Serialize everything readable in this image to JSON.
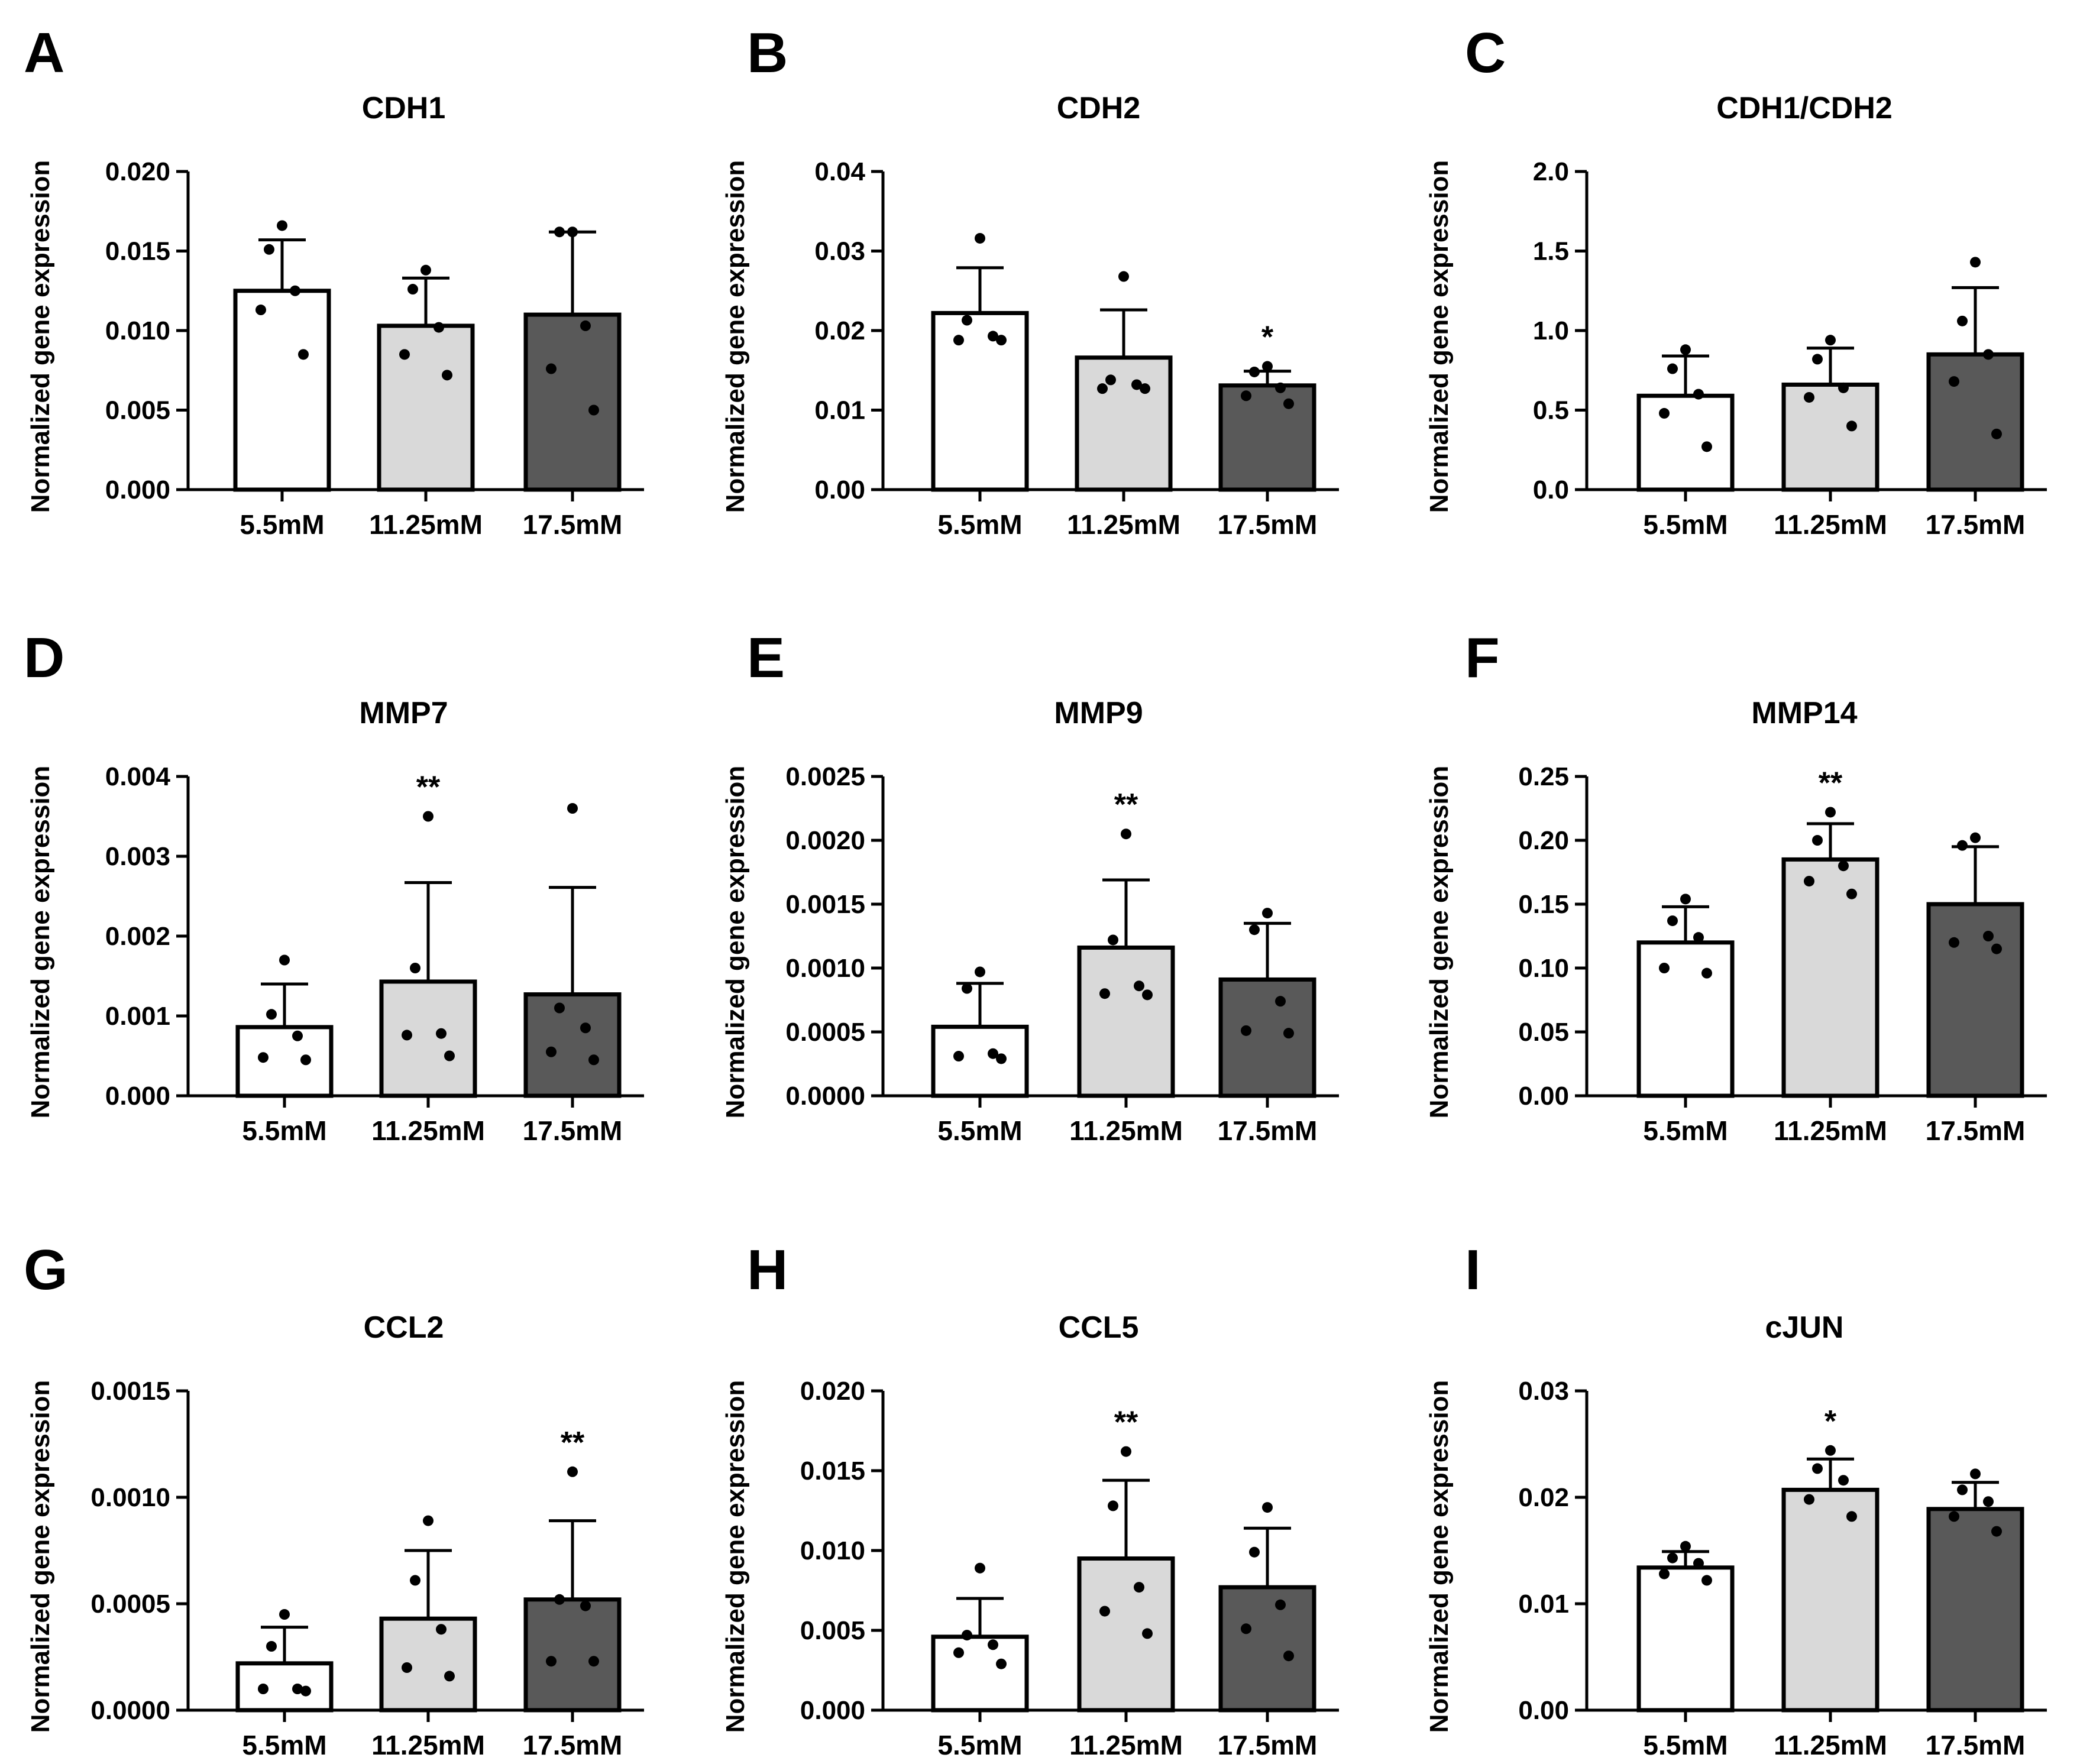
{
  "figure": {
    "categories": [
      "5.5mM",
      "11.25mM",
      "17.5mM"
    ],
    "bar_colors": [
      "#ffffff",
      "#d9d9d9",
      "#595959"
    ],
    "ylabel": "Normalized gene expression"
  },
  "chart_data": [
    {
      "panel": "A",
      "type": "bar",
      "title": "CDH1",
      "xlabel": "",
      "ylabel": "Normalized gene expression",
      "categories": [
        "5.5mM",
        "11.25mM",
        "17.5mM"
      ],
      "ylim": [
        0,
        0.02
      ],
      "yticks": [
        0,
        0.005,
        0.01,
        0.015,
        0.02
      ],
      "ytick_labels": [
        "0.000",
        "0.005",
        "0.010",
        "0.015",
        "0.020"
      ],
      "values": [
        0.0125,
        0.0103,
        0.011
      ],
      "errors": [
        0.0032,
        0.003,
        0.0052
      ],
      "points": [
        [
          0.0166,
          0.0151,
          0.0125,
          0.0113,
          0.0085
        ],
        [
          0.0138,
          0.0126,
          0.0102,
          0.0085,
          0.0072
        ],
        [
          0.0162,
          0.0162,
          0.0103,
          0.0076,
          0.005
        ]
      ],
      "significance": [
        "",
        "",
        ""
      ]
    },
    {
      "panel": "B",
      "type": "bar",
      "title": "CDH2",
      "xlabel": "",
      "ylabel": "Normalized gene expression",
      "categories": [
        "5.5mM",
        "11.25mM",
        "17.5mM"
      ],
      "ylim": [
        0,
        0.04
      ],
      "yticks": [
        0,
        0.01,
        0.02,
        0.03,
        0.04
      ],
      "ytick_labels": [
        "0.00",
        "0.01",
        "0.02",
        "0.03",
        "0.04"
      ],
      "values": [
        0.0222,
        0.0166,
        0.0131
      ],
      "errors": [
        0.0057,
        0.006,
        0.0018
      ],
      "points": [
        [
          0.0316,
          0.0213,
          0.0193,
          0.0188,
          0.0188
        ],
        [
          0.0268,
          0.0138,
          0.0132,
          0.0127,
          0.0127
        ],
        [
          0.0155,
          0.0148,
          0.0128,
          0.0118,
          0.0108
        ]
      ],
      "significance": [
        "",
        "",
        "*"
      ]
    },
    {
      "panel": "C",
      "type": "bar",
      "title": "CDH1/CDH2",
      "xlabel": "",
      "ylabel": "Normalized gene expression",
      "categories": [
        "5.5mM",
        "11.25mM",
        "17.5mM"
      ],
      "ylim": [
        0,
        2
      ],
      "yticks": [
        0,
        0.5,
        1,
        1.5,
        2
      ],
      "ytick_labels": [
        "0.0",
        "0.5",
        "1.0",
        "1.5",
        "2.0"
      ],
      "values": [
        0.59,
        0.66,
        0.85
      ],
      "errors": [
        0.25,
        0.23,
        0.42
      ],
      "points": [
        [
          0.88,
          0.76,
          0.6,
          0.48,
          0.27
        ],
        [
          0.94,
          0.82,
          0.64,
          0.58,
          0.4
        ],
        [
          1.43,
          1.06,
          0.85,
          0.68,
          0.35
        ]
      ],
      "significance": [
        "",
        "",
        ""
      ]
    },
    {
      "panel": "D",
      "type": "bar",
      "title": "MMP7",
      "xlabel": "",
      "ylabel": "Normalized gene expression",
      "categories": [
        "5.5mM",
        "11.25mM",
        "17.5mM"
      ],
      "ylim": [
        0,
        0.004
      ],
      "yticks": [
        0,
        0.001,
        0.002,
        0.003,
        0.004
      ],
      "ytick_labels": [
        "0.000",
        "0.001",
        "0.002",
        "0.003",
        "0.004"
      ],
      "values": [
        0.00086,
        0.00143,
        0.00127
      ],
      "errors": [
        0.00054,
        0.00124,
        0.00134
      ],
      "points": [
        [
          0.0017,
          0.00102,
          0.00075,
          0.00048,
          0.00045
        ],
        [
          0.0035,
          0.0016,
          0.00078,
          0.00076,
          0.0005
        ],
        [
          0.0036,
          0.0011,
          0.00085,
          0.00055,
          0.00045
        ]
      ],
      "significance": [
        "",
        "**",
        ""
      ]
    },
    {
      "panel": "E",
      "type": "bar",
      "title": "MMP9",
      "xlabel": "",
      "ylabel": "Normalized gene expression",
      "categories": [
        "5.5mM",
        "11.25mM",
        "17.5mM"
      ],
      "ylim": [
        0,
        0.0025
      ],
      "yticks": [
        0,
        0.0005,
        0.001,
        0.0015,
        0.002,
        0.0025
      ],
      "ytick_labels": [
        "0.0000",
        "0.0005",
        "0.0010",
        "0.0015",
        "0.0020",
        "0.0025"
      ],
      "values": [
        0.00054,
        0.00116,
        0.00091
      ],
      "errors": [
        0.00034,
        0.00053,
        0.00044
      ],
      "points": [
        [
          0.00097,
          0.00084,
          0.00033,
          0.00031,
          0.00029
        ],
        [
          0.00205,
          0.00122,
          0.00086,
          0.0008,
          0.00079
        ],
        [
          0.00143,
          0.0013,
          0.00074,
          0.00051,
          0.00049
        ]
      ],
      "significance": [
        "",
        "**",
        ""
      ]
    },
    {
      "panel": "F",
      "type": "bar",
      "title": "MMP14",
      "xlabel": "",
      "ylabel": "Normalized gene expression",
      "categories": [
        "5.5mM",
        "11.25mM",
        "17.5mM"
      ],
      "ylim": [
        0,
        0.25
      ],
      "yticks": [
        0,
        0.05,
        0.1,
        0.15,
        0.2,
        0.25
      ],
      "ytick_labels": [
        "0.00",
        "0.05",
        "0.10",
        "0.15",
        "0.20",
        "0.25"
      ],
      "values": [
        0.12,
        0.185,
        0.15
      ],
      "errors": [
        0.028,
        0.028,
        0.045
      ],
      "points": [
        [
          0.154,
          0.137,
          0.124,
          0.1,
          0.096
        ],
        [
          0.222,
          0.2,
          0.18,
          0.168,
          0.158
        ],
        [
          0.202,
          0.196,
          0.125,
          0.12,
          0.115
        ]
      ],
      "significance": [
        "",
        "**",
        ""
      ]
    },
    {
      "panel": "G",
      "type": "bar",
      "title": "CCL2",
      "xlabel": "",
      "ylabel": "Normalized gene expression",
      "categories": [
        "5.5mM",
        "11.25mM",
        "17.5mM"
      ],
      "ylim": [
        0,
        0.0015
      ],
      "yticks": [
        0,
        0.0005,
        0.001,
        0.0015
      ],
      "ytick_labels": [
        "0.0000",
        "0.0005",
        "0.0010",
        "0.0015"
      ],
      "values": [
        0.00022,
        0.00043,
        0.00052
      ],
      "errors": [
        0.00017,
        0.00032,
        0.00037
      ],
      "points": [
        [
          0.00045,
          0.0003,
          0.0001,
          0.0001,
          9e-05
        ],
        [
          0.00089,
          0.00061,
          0.00038,
          0.0002,
          0.00016
        ],
        [
          0.00112,
          0.00052,
          0.00049,
          0.00023,
          0.00023
        ]
      ],
      "significance": [
        "",
        "",
        "**"
      ]
    },
    {
      "panel": "H",
      "type": "bar",
      "title": "CCL5",
      "xlabel": "",
      "ylabel": "Normalized gene expression",
      "categories": [
        "5.5mM",
        "11.25mM",
        "17.5mM"
      ],
      "ylim": [
        0,
        0.02
      ],
      "yticks": [
        0,
        0.005,
        0.01,
        0.015,
        0.02
      ],
      "ytick_labels": [
        "0.000",
        "0.005",
        "0.010",
        "0.015",
        "0.020"
      ],
      "values": [
        0.0046,
        0.0095,
        0.0077
      ],
      "errors": [
        0.0024,
        0.0049,
        0.0037
      ],
      "points": [
        [
          0.0089,
          0.0047,
          0.0041,
          0.0036,
          0.0029
        ],
        [
          0.0162,
          0.0128,
          0.0077,
          0.0062,
          0.0048
        ],
        [
          0.0127,
          0.0099,
          0.0066,
          0.0051,
          0.0034
        ]
      ],
      "significance": [
        "",
        "**",
        ""
      ]
    },
    {
      "panel": "I",
      "type": "bar",
      "title": "cJUN",
      "xlabel": "",
      "ylabel": "Normalized gene expression",
      "categories": [
        "5.5mM",
        "11.25mM",
        "17.5mM"
      ],
      "ylim": [
        0,
        0.03
      ],
      "yticks": [
        0,
        0.01,
        0.02,
        0.03
      ],
      "ytick_labels": [
        "0.00",
        "0.01",
        "0.02",
        "0.03"
      ],
      "values": [
        0.0134,
        0.0207,
        0.0189
      ],
      "errors": [
        0.0015,
        0.0029,
        0.0025
      ],
      "points": [
        [
          0.0154,
          0.0143,
          0.0138,
          0.0128,
          0.0122
        ],
        [
          0.0244,
          0.0227,
          0.0216,
          0.0198,
          0.0182
        ],
        [
          0.0222,
          0.0207,
          0.0196,
          0.0182,
          0.0168
        ]
      ],
      "significance": [
        "",
        "*",
        ""
      ]
    }
  ]
}
